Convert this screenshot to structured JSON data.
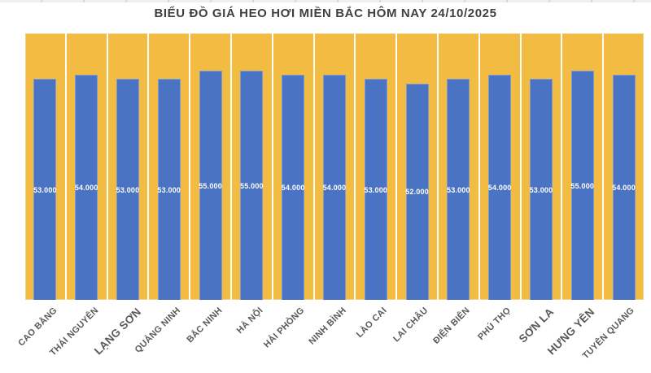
{
  "chart_data": {
    "type": "bar",
    "title": "BIỂU ĐỒ GIÁ HEO HƠI MIỀN BẮC HÔM NAY 24/10/2025",
    "categories": [
      "CAO BẰNG",
      "THÁI NGUYÊN",
      "LẠNG SƠN",
      "QUẢNG NINH",
      "BẮC NINH",
      "HÀ NỘI",
      "HẢI PHÒNG",
      "NINH BÌNH",
      "LÀO CAI",
      "LAI CHÂU",
      "ĐIỆN BIÊN",
      "PHÚ THỌ",
      "SƠN LA",
      "HƯNG YÊN",
      "TUYÊN QUANG"
    ],
    "values": [
      53000,
      54000,
      53000,
      53000,
      55000,
      55000,
      54000,
      54000,
      53000,
      52000,
      53000,
      54000,
      53000,
      55000,
      54000
    ],
    "value_labels": [
      "53.000",
      "54.000",
      "53.000",
      "53.000",
      "55.000",
      "55.000",
      "54.000",
      "54.000",
      "53.000",
      "52.000",
      "53.000",
      "54.000",
      "53.000",
      "55.000",
      "54.000"
    ],
    "xlabel": "",
    "ylabel": "",
    "ylim": [
      0,
      64000
    ],
    "grid": false,
    "legend": "none",
    "value_label_position": "center-of-bar",
    "xlabel_rotation_deg": -45,
    "large_labels": [
      "LẠNG SƠN",
      "SƠN LA",
      "HƯNG YÊN"
    ]
  },
  "colors": {
    "page_background": "#FFFFFF",
    "plot_background": "#F2BC42",
    "bar_fill": "#4A73C4",
    "title_text": "#3F3F3F",
    "axis_label_text": "#595959",
    "value_label_text": "#FFFFFF",
    "separator_line": "#FDFDF8",
    "top_strip": "#EFEFEF"
  }
}
